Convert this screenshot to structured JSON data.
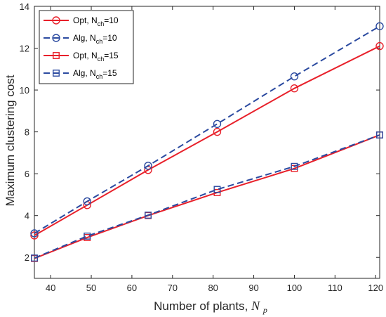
{
  "chart_data": {
    "type": "line",
    "xlabel": "Number of plants,",
    "xlabel_symbol": "N",
    "xlabel_symbol_sub": "p",
    "ylabel": "Maximum clustering cost",
    "xlim": [
      36,
      121
    ],
    "ylim": [
      1,
      14
    ],
    "xticks": [
      40,
      50,
      60,
      70,
      80,
      90,
      100,
      110,
      120
    ],
    "yticks": [
      2,
      4,
      6,
      8,
      10,
      12,
      14
    ],
    "grid": false,
    "legend_position": "top-left",
    "series": [
      {
        "name_main": "Opt, N",
        "name_sub": "ch",
        "name_tail": "=10",
        "color": "#e8202a",
        "dash": "solid",
        "marker": "circle",
        "x": [
          36,
          49,
          64,
          81,
          100,
          121
        ],
        "y": [
          3.05,
          4.5,
          6.18,
          8.0,
          10.08,
          12.1
        ]
      },
      {
        "name_main": "Alg, N",
        "name_sub": "ch",
        "name_tail": "=10",
        "color": "#2b4aa0",
        "dash": "dashed",
        "marker": "circle",
        "x": [
          36,
          49,
          64,
          81,
          100,
          121
        ],
        "y": [
          3.15,
          4.68,
          6.38,
          8.38,
          10.65,
          13.05
        ]
      },
      {
        "name_main": "Opt, N",
        "name_sub": "ch",
        "name_tail": "=15",
        "color": "#e8202a",
        "dash": "solid",
        "marker": "square",
        "x": [
          36,
          49,
          64,
          81,
          100,
          121
        ],
        "y": [
          1.95,
          2.95,
          4.0,
          5.1,
          6.25,
          7.85
        ]
      },
      {
        "name_main": "Alg, N",
        "name_sub": "ch",
        "name_tail": "=15",
        "color": "#2b4aa0",
        "dash": "dashed",
        "marker": "square",
        "x": [
          36,
          49,
          64,
          81,
          100,
          121
        ],
        "y": [
          1.97,
          3.02,
          4.02,
          5.25,
          6.35,
          7.85
        ]
      }
    ]
  }
}
